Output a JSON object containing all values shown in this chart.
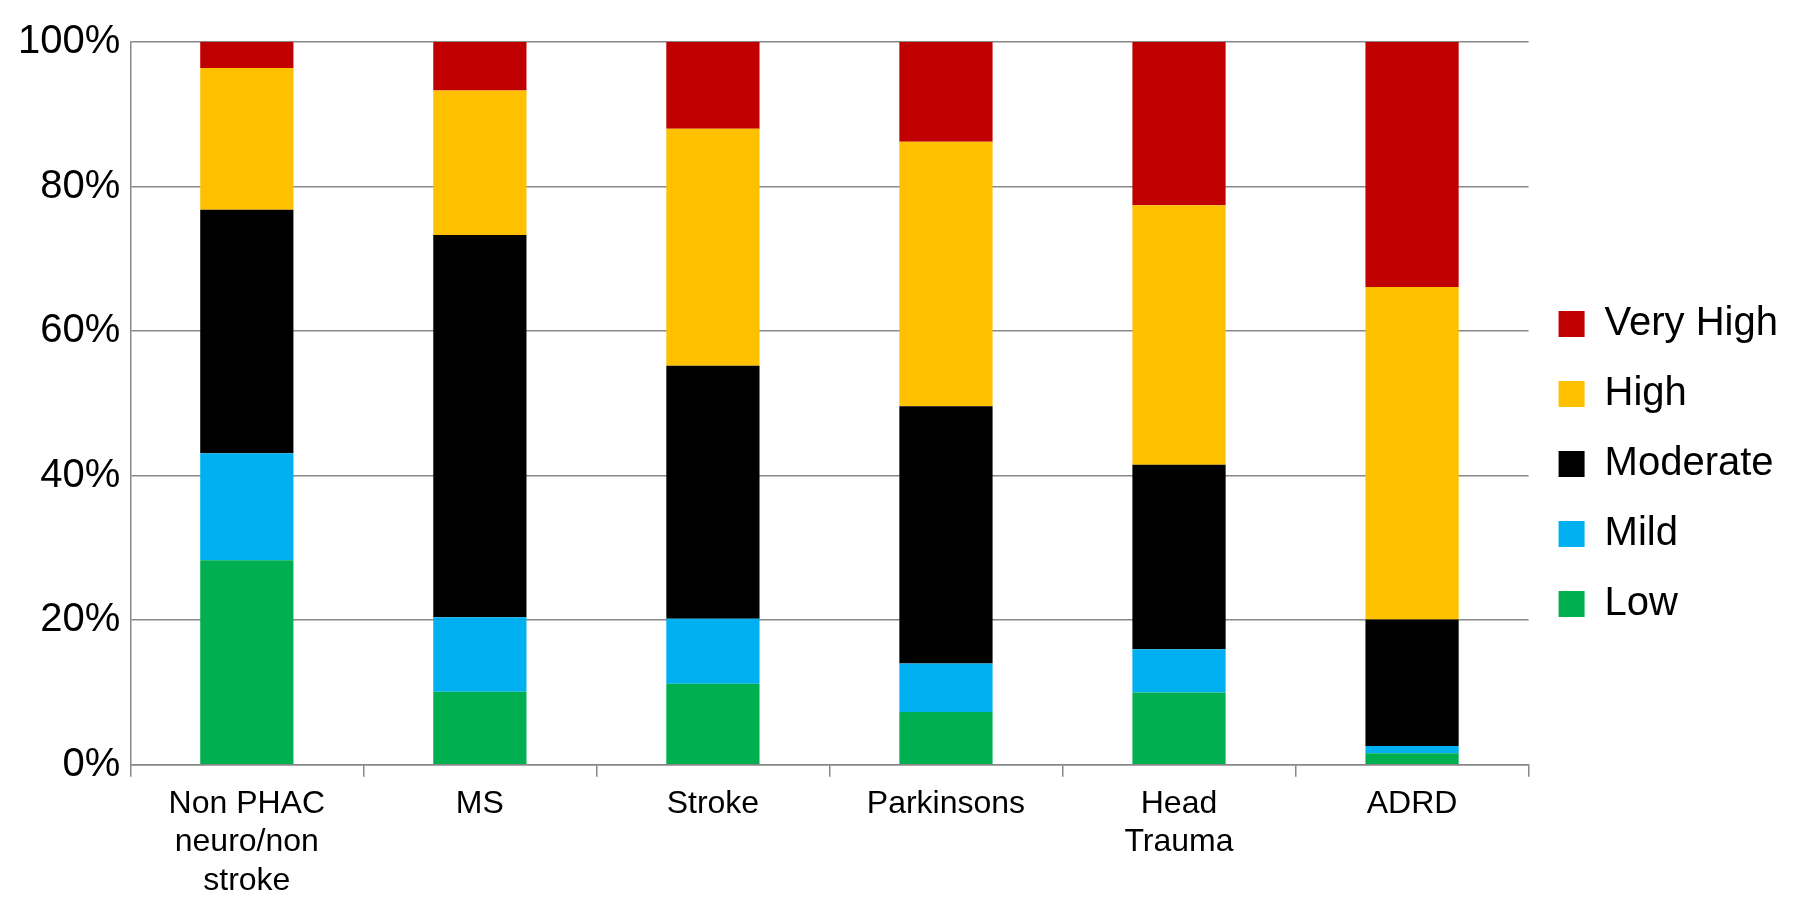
{
  "chart_data": {
    "type": "bar",
    "stacked": true,
    "categories": [
      "Non PHAC neuro/non stroke",
      "MS",
      "Stroke",
      "Parkinsons",
      "Head Trauma",
      "ADRD"
    ],
    "series": [
      {
        "name": "Low",
        "color": "#00b050",
        "values": [
          28.3,
          10.1,
          11.2,
          7.3,
          10.0,
          1.6
        ]
      },
      {
        "name": "Mild",
        "color": "#00b0f0",
        "values": [
          14.8,
          10.3,
          9.0,
          6.7,
          6.0,
          1.0
        ]
      },
      {
        "name": "Moderate",
        "color": "#000000",
        "values": [
          33.7,
          52.9,
          35.0,
          35.6,
          25.5,
          17.5
        ]
      },
      {
        "name": "High",
        "color": "#ffc000",
        "values": [
          19.6,
          20.0,
          32.8,
          36.6,
          35.9,
          46.0
        ]
      },
      {
        "name": "Very High",
        "color": "#c00000",
        "values": [
          3.6,
          6.7,
          12.0,
          13.8,
          22.6,
          33.9
        ]
      }
    ],
    "ylim": [
      0,
      100
    ],
    "yticks": [
      {
        "value": 0,
        "label": "0%"
      },
      {
        "value": 20,
        "label": "20%"
      },
      {
        "value": 40,
        "label": "40%"
      },
      {
        "value": 60,
        "label": "60%"
      },
      {
        "value": 80,
        "label": "80%"
      },
      {
        "value": 100,
        "label": "100%"
      }
    ],
    "grid": "y",
    "legend": "right"
  }
}
